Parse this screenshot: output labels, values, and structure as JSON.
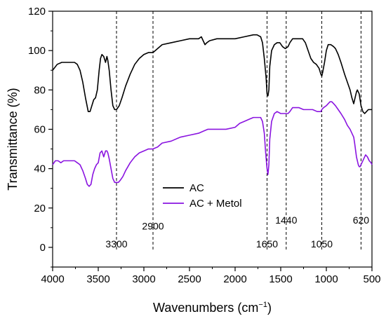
{
  "chart_data": {
    "type": "line",
    "title": "",
    "xlabel": "Wavenumbers (cm⁻¹)",
    "xlabel_main": "Wavenumbers (cm",
    "xlabel_sup": "−1",
    "xlabel_close": ")",
    "ylabel": "Transmittance (%)",
    "xlim": [
      4000,
      500
    ],
    "ylim": [
      -10,
      120
    ],
    "x_reversed": true,
    "grid": false,
    "legend_position": "center",
    "xticks": [
      4000,
      3500,
      3000,
      2500,
      2000,
      1500,
      1000,
      500
    ],
    "yticks": [
      0,
      20,
      40,
      60,
      80,
      100,
      120
    ],
    "xtick_labels": [
      "4000",
      "3500",
      "3000",
      "2500",
      "2000",
      "1500",
      "1000",
      "500"
    ],
    "ytick_labels": [
      "0",
      "20",
      "40",
      "60",
      "80",
      "100",
      "120"
    ],
    "series": [
      {
        "name": "AC",
        "color": "#000000",
        "points": [
          [
            4000,
            90
          ],
          [
            3950,
            93
          ],
          [
            3900,
            94
          ],
          [
            3850,
            94
          ],
          [
            3800,
            94
          ],
          [
            3760,
            94
          ],
          [
            3730,
            93
          ],
          [
            3700,
            90
          ],
          [
            3670,
            84
          ],
          [
            3640,
            76
          ],
          [
            3610,
            69
          ],
          [
            3590,
            69
          ],
          [
            3570,
            72
          ],
          [
            3550,
            75
          ],
          [
            3530,
            76
          ],
          [
            3510,
            80
          ],
          [
            3490,
            90
          ],
          [
            3475,
            96
          ],
          [
            3460,
            98
          ],
          [
            3440,
            97
          ],
          [
            3420,
            94
          ],
          [
            3405,
            97
          ],
          [
            3395,
            95
          ],
          [
            3380,
            90
          ],
          [
            3360,
            80
          ],
          [
            3340,
            72
          ],
          [
            3320,
            70
          ],
          [
            3300,
            70
          ],
          [
            3270,
            72
          ],
          [
            3240,
            76
          ],
          [
            3200,
            82
          ],
          [
            3150,
            88
          ],
          [
            3100,
            93
          ],
          [
            3050,
            96
          ],
          [
            3000,
            98
          ],
          [
            2950,
            99
          ],
          [
            2900,
            99
          ],
          [
            2850,
            101
          ],
          [
            2800,
            103
          ],
          [
            2700,
            104
          ],
          [
            2600,
            105
          ],
          [
            2500,
            106
          ],
          [
            2400,
            106
          ],
          [
            2370,
            107
          ],
          [
            2350,
            105
          ],
          [
            2330,
            103
          ],
          [
            2310,
            104
          ],
          [
            2280,
            105
          ],
          [
            2200,
            106
          ],
          [
            2100,
            106
          ],
          [
            2000,
            106
          ],
          [
            1900,
            107
          ],
          [
            1800,
            108
          ],
          [
            1760,
            108
          ],
          [
            1720,
            107
          ],
          [
            1700,
            104
          ],
          [
            1680,
            96
          ],
          [
            1660,
            86
          ],
          [
            1650,
            78
          ],
          [
            1640,
            77
          ],
          [
            1630,
            80
          ],
          [
            1620,
            92
          ],
          [
            1600,
            100
          ],
          [
            1570,
            103
          ],
          [
            1540,
            104
          ],
          [
            1510,
            104
          ],
          [
            1480,
            102
          ],
          [
            1450,
            101
          ],
          [
            1420,
            102
          ],
          [
            1400,
            104
          ],
          [
            1370,
            106
          ],
          [
            1330,
            106
          ],
          [
            1300,
            106
          ],
          [
            1260,
            106
          ],
          [
            1230,
            104
          ],
          [
            1200,
            100
          ],
          [
            1170,
            96
          ],
          [
            1140,
            94
          ],
          [
            1110,
            93
          ],
          [
            1080,
            91
          ],
          [
            1060,
            88
          ],
          [
            1050,
            87
          ],
          [
            1040,
            89
          ],
          [
            1020,
            94
          ],
          [
            1000,
            100
          ],
          [
            980,
            103
          ],
          [
            950,
            103
          ],
          [
            920,
            102
          ],
          [
            900,
            101
          ],
          [
            870,
            98
          ],
          [
            840,
            94
          ],
          [
            800,
            88
          ],
          [
            770,
            84
          ],
          [
            740,
            80
          ],
          [
            720,
            76
          ],
          [
            700,
            73
          ],
          [
            690,
            75
          ],
          [
            670,
            79
          ],
          [
            660,
            80
          ],
          [
            640,
            78
          ],
          [
            620,
            72
          ],
          [
            600,
            69
          ],
          [
            580,
            68
          ],
          [
            560,
            69
          ],
          [
            540,
            70
          ],
          [
            520,
            70
          ],
          [
            500,
            70
          ]
        ]
      },
      {
        "name": "AC + Metol",
        "color": "#8a14e0",
        "points": [
          [
            4000,
            42
          ],
          [
            3970,
            44
          ],
          [
            3940,
            44
          ],
          [
            3910,
            43
          ],
          [
            3880,
            44
          ],
          [
            3850,
            44
          ],
          [
            3800,
            44
          ],
          [
            3760,
            44
          ],
          [
            3730,
            43
          ],
          [
            3700,
            42
          ],
          [
            3670,
            39
          ],
          [
            3640,
            35
          ],
          [
            3620,
            32
          ],
          [
            3600,
            31
          ],
          [
            3580,
            32
          ],
          [
            3560,
            37
          ],
          [
            3540,
            40
          ],
          [
            3520,
            42
          ],
          [
            3500,
            43
          ],
          [
            3480,
            48
          ],
          [
            3460,
            49
          ],
          [
            3440,
            46
          ],
          [
            3420,
            49
          ],
          [
            3405,
            49
          ],
          [
            3395,
            48
          ],
          [
            3380,
            45
          ],
          [
            3360,
            40
          ],
          [
            3340,
            35
          ],
          [
            3320,
            33
          ],
          [
            3300,
            33
          ],
          [
            3280,
            33
          ],
          [
            3260,
            34
          ],
          [
            3230,
            36
          ],
          [
            3200,
            39
          ],
          [
            3150,
            43
          ],
          [
            3100,
            46
          ],
          [
            3050,
            48
          ],
          [
            3000,
            49
          ],
          [
            2950,
            50
          ],
          [
            2900,
            50
          ],
          [
            2850,
            51
          ],
          [
            2800,
            53
          ],
          [
            2700,
            54
          ],
          [
            2600,
            56
          ],
          [
            2500,
            57
          ],
          [
            2400,
            58
          ],
          [
            2350,
            59
          ],
          [
            2300,
            60
          ],
          [
            2200,
            60
          ],
          [
            2100,
            60
          ],
          [
            2000,
            61
          ],
          [
            1950,
            63
          ],
          [
            1900,
            64
          ],
          [
            1850,
            65
          ],
          [
            1800,
            66
          ],
          [
            1760,
            66
          ],
          [
            1720,
            66
          ],
          [
            1700,
            64
          ],
          [
            1680,
            58
          ],
          [
            1665,
            48
          ],
          [
            1650,
            40
          ],
          [
            1640,
            37
          ],
          [
            1630,
            42
          ],
          [
            1620,
            55
          ],
          [
            1600,
            64
          ],
          [
            1570,
            68
          ],
          [
            1540,
            69
          ],
          [
            1500,
            68
          ],
          [
            1460,
            68
          ],
          [
            1440,
            68
          ],
          [
            1420,
            68
          ],
          [
            1400,
            69
          ],
          [
            1370,
            71
          ],
          [
            1330,
            71
          ],
          [
            1300,
            71
          ],
          [
            1250,
            70
          ],
          [
            1200,
            70
          ],
          [
            1150,
            70
          ],
          [
            1100,
            69
          ],
          [
            1060,
            69
          ],
          [
            1050,
            70
          ],
          [
            1030,
            71
          ],
          [
            1000,
            72
          ],
          [
            980,
            73
          ],
          [
            960,
            74
          ],
          [
            940,
            74
          ],
          [
            920,
            73
          ],
          [
            900,
            72
          ],
          [
            870,
            70
          ],
          [
            840,
            68
          ],
          [
            800,
            65
          ],
          [
            770,
            62
          ],
          [
            740,
            60
          ],
          [
            720,
            58
          ],
          [
            700,
            56
          ],
          [
            690,
            53
          ],
          [
            670,
            46
          ],
          [
            650,
            42
          ],
          [
            640,
            41
          ],
          [
            630,
            41
          ],
          [
            610,
            43
          ],
          [
            590,
            45
          ],
          [
            570,
            47
          ],
          [
            550,
            46
          ],
          [
            530,
            44
          ],
          [
            510,
            43
          ],
          [
            500,
            42
          ]
        ]
      }
    ],
    "vlines": [
      3300,
      2900,
      1650,
      1440,
      1050,
      620
    ],
    "annotations": [
      {
        "text": "3300",
        "x": 3300,
        "y": 0
      },
      {
        "text": "2900",
        "x": 2900,
        "y": 9
      },
      {
        "text": "1650",
        "x": 1650,
        "y": 0
      },
      {
        "text": "1440",
        "x": 1440,
        "y": 12
      },
      {
        "text": "1050",
        "x": 1050,
        "y": 0
      },
      {
        "text": "620",
        "x": 620,
        "y": 12
      }
    ]
  }
}
